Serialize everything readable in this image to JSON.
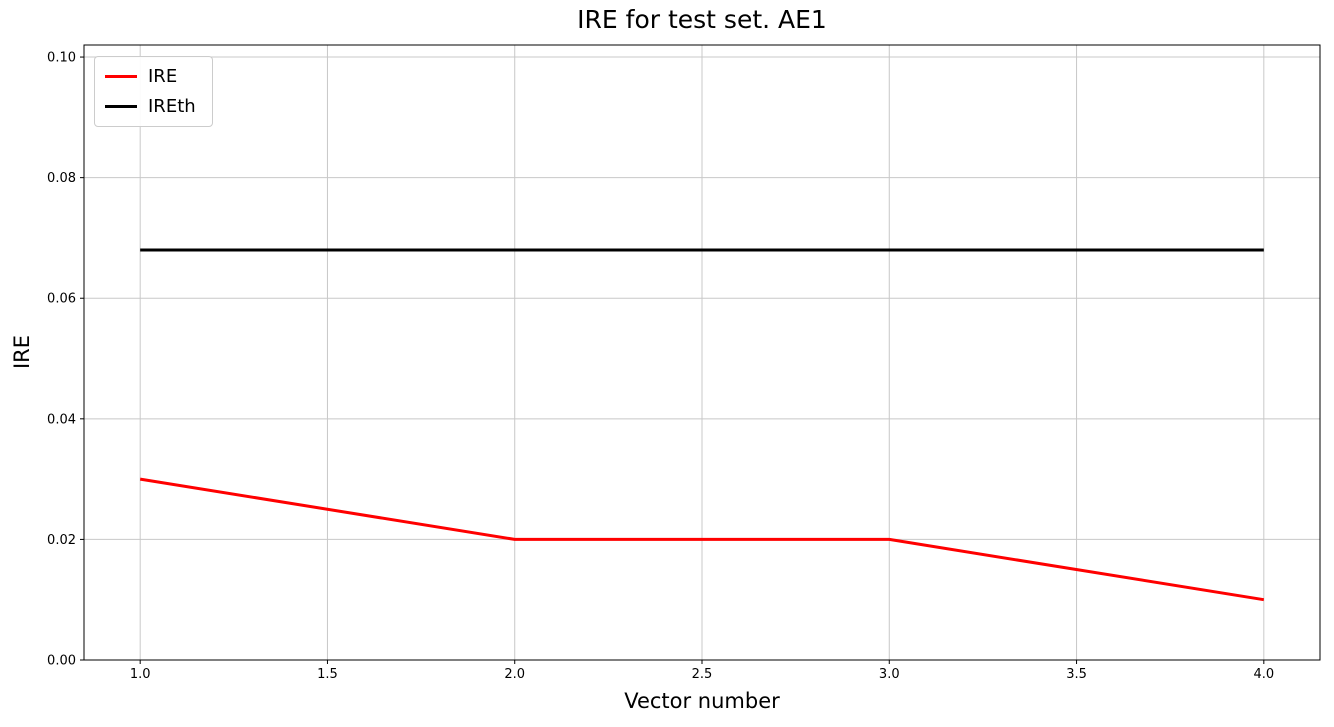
{
  "chart_data": {
    "type": "line",
    "title": "IRE for test set. AE1",
    "xlabel": "Vector number",
    "ylabel": "IRE",
    "xlim": [
      0.85,
      4.15
    ],
    "ylim": [
      0,
      0.102
    ],
    "grid": true,
    "grid_color": "#c8c8c8",
    "axes_edge_color": "#000000",
    "background_color": "#ffffff",
    "legend_position": "upper left",
    "x_tick_values": [
      1.0,
      1.5,
      2.0,
      2.5,
      3.0,
      3.5,
      4.0
    ],
    "x_tick_labels": [
      "1.0",
      "1.5",
      "2.0",
      "2.5",
      "3.0",
      "3.5",
      "4.0"
    ],
    "y_tick_values": [
      0.0,
      0.02,
      0.04,
      0.06,
      0.08,
      0.1
    ],
    "y_tick_labels": [
      "0.00",
      "0.02",
      "0.04",
      "0.06",
      "0.08",
      "0.10"
    ],
    "series": [
      {
        "name": "IRE",
        "color": "#ff0000",
        "line_width": 3,
        "x": [
          1,
          2,
          3,
          4
        ],
        "values": [
          0.03,
          0.02,
          0.02,
          0.01
        ]
      },
      {
        "name": "IREth",
        "color": "#000000",
        "line_width": 3,
        "x": [
          1,
          4
        ],
        "values": [
          0.068,
          0.068
        ]
      }
    ]
  }
}
